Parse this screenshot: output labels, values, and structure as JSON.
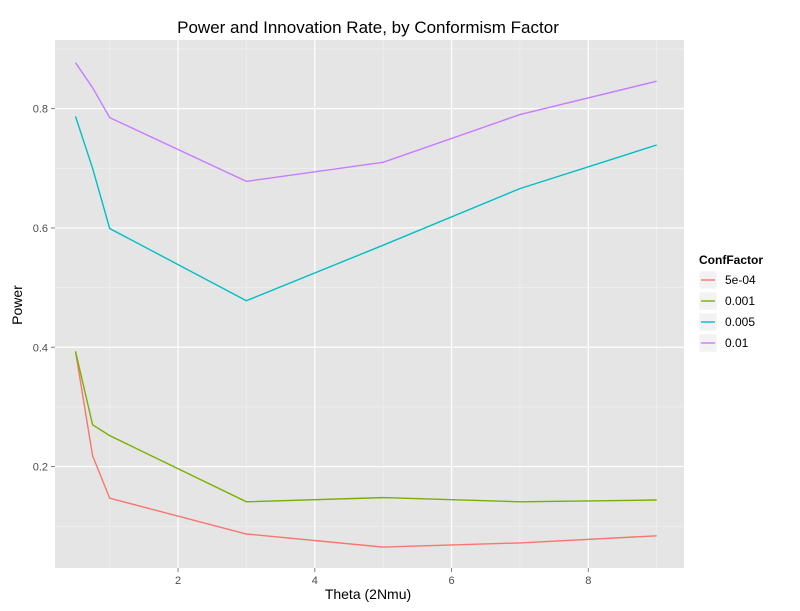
{
  "chart_data": {
    "type": "line",
    "title": "Power and Innovation Rate, by Conformism Factor",
    "xlabel": "Theta (2Nmu)",
    "ylabel": "Power",
    "xlim": [
      0.2,
      9.4
    ],
    "ylim": [
      0.03,
      0.915
    ],
    "xticks": [
      2,
      4,
      6,
      8
    ],
    "yticks": [
      0.2,
      0.4,
      0.6,
      0.8
    ],
    "xtick_labels": [
      "2",
      "4",
      "6",
      "8"
    ],
    "ytick_labels": [
      "0.2",
      "0.4",
      "0.6",
      "0.8"
    ],
    "grid": true,
    "legend": {
      "title": "ConfFactor",
      "placement": "right"
    },
    "x": [
      0.5,
      0.75,
      1,
      3,
      5,
      7,
      9
    ],
    "series": [
      {
        "name": "5e-04",
        "color": "#F8766D",
        "values": [
          0.393,
          0.218,
          0.147,
          0.087,
          0.065,
          0.072,
          0.084
        ]
      },
      {
        "name": "0.001",
        "color": "#7CAE00",
        "values": [
          0.393,
          0.27,
          0.252,
          0.141,
          0.148,
          0.141,
          0.144
        ]
      },
      {
        "name": "0.005",
        "color": "#00BFC4",
        "values": [
          0.787,
          0.7,
          0.599,
          0.478,
          0.571,
          0.666,
          0.739
        ]
      },
      {
        "name": "0.01",
        "color": "#C77CFF",
        "values": [
          0.877,
          0.835,
          0.785,
          0.678,
          0.71,
          0.79,
          0.846
        ]
      }
    ]
  }
}
